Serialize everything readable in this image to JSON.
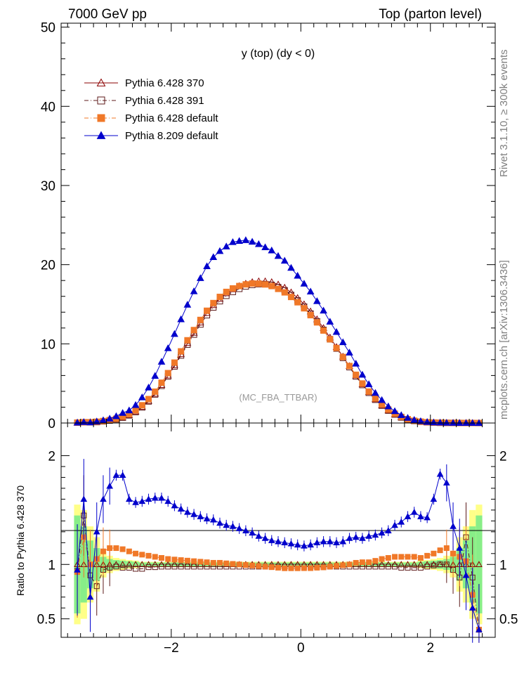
{
  "header": {
    "left": "7000 GeV pp",
    "right": "Top (parton level)"
  },
  "side_text": {
    "rivet": "Rivet 3.1.10, ≥ 300k events",
    "mcplots": "mcplots.cern.ch [arXiv:1306.3436]"
  },
  "chart_data": {
    "type": "line",
    "title": "y (top) (dy < 0)",
    "analysis_id": "(MC_FBA_TTBAR)",
    "main_ylim": [
      0,
      50.5
    ],
    "main_yticks": [
      "0",
      "10",
      "20",
      "30",
      "40",
      "50"
    ],
    "xlim": [
      -3.7,
      3.0
    ],
    "xticks": [
      "−2",
      "0",
      "2"
    ],
    "ratio_ylabel": "Ratio to Pythia 6.428 370",
    "ratio_ylim": [
      0.33,
      2.3
    ],
    "ratio_yticks": [
      "0.5",
      "1",
      "2"
    ],
    "legend": [
      {
        "name": "Pythia 6.428 370",
        "color": "#8b0000",
        "marker": "open-triangle",
        "dash": "solid"
      },
      {
        "name": "Pythia 6.428 391",
        "color": "#5c1a1a",
        "marker": "open-square",
        "dash": "dashdot"
      },
      {
        "name": "Pythia 6.428 default",
        "color": "#f07828",
        "marker": "filled-square",
        "dash": "dashdot"
      },
      {
        "name": "Pythia 8.209 default",
        "color": "#0000cc",
        "marker": "filled-triangle",
        "dash": "solid"
      }
    ],
    "x": [
      -3.45,
      -3.35,
      -3.25,
      -3.15,
      -3.05,
      -2.95,
      -2.85,
      -2.75,
      -2.65,
      -2.55,
      -2.45,
      -2.35,
      -2.25,
      -2.15,
      -2.05,
      -1.95,
      -1.85,
      -1.75,
      -1.65,
      -1.55,
      -1.45,
      -1.35,
      -1.25,
      -1.15,
      -1.05,
      -0.95,
      -0.85,
      -0.75,
      -0.65,
      -0.55,
      -0.45,
      -0.35,
      -0.25,
      -0.15,
      -0.05,
      0.05,
      0.15,
      0.25,
      0.35,
      0.45,
      0.55,
      0.65,
      0.75,
      0.85,
      0.95,
      1.05,
      1.15,
      1.25,
      1.35,
      1.45,
      1.55,
      1.65,
      1.75,
      1.85,
      1.95,
      2.05,
      2.15,
      2.25,
      2.35,
      2.45,
      2.55,
      2.65,
      2.75
    ],
    "series": [
      {
        "name": "Pythia 6.428 370",
        "values": [
          0.05,
          0.07,
          0.1,
          0.15,
          0.22,
          0.32,
          0.47,
          0.7,
          1.0,
          1.45,
          2.05,
          2.8,
          3.7,
          4.8,
          6.0,
          7.3,
          8.7,
          10.1,
          11.4,
          12.7,
          13.9,
          14.9,
          15.7,
          16.4,
          16.9,
          17.3,
          17.6,
          17.8,
          17.9,
          17.9,
          17.8,
          17.5,
          17.1,
          16.5,
          15.8,
          15.0,
          14.1,
          13.1,
          12.0,
          10.8,
          9.6,
          8.4,
          7.2,
          6.0,
          4.9,
          3.9,
          3.0,
          2.25,
          1.6,
          1.1,
          0.72,
          0.45,
          0.27,
          0.16,
          0.09,
          0.05,
          0.03,
          0.02,
          0.012,
          0.007,
          0.004,
          0.002,
          0.001
        ]
      },
      {
        "name": "Pythia 6.428 391",
        "values": [
          0.047,
          0.1,
          0.09,
          0.12,
          0.21,
          0.31,
          0.46,
          0.68,
          0.97,
          1.39,
          1.97,
          2.73,
          3.61,
          4.7,
          5.88,
          7.15,
          8.53,
          9.9,
          11.17,
          12.45,
          13.62,
          14.6,
          15.39,
          16.07,
          16.56,
          16.95,
          17.25,
          17.44,
          17.54,
          17.54,
          17.44,
          17.15,
          16.76,
          16.17,
          15.48,
          14.7,
          13.82,
          12.84,
          11.76,
          10.58,
          9.41,
          8.23,
          7.06,
          5.88,
          4.8,
          3.82,
          2.94,
          2.2,
          1.57,
          1.08,
          0.7,
          0.44,
          0.26,
          0.16,
          0.09,
          0.05,
          0.03,
          0.02,
          0.012,
          0.007,
          0.004,
          0.0025,
          0.001
        ]
      },
      {
        "name": "Pythia 6.428 default",
        "values": [
          0.05,
          0.09,
          0.1,
          0.16,
          0.25,
          0.37,
          0.54,
          0.8,
          1.12,
          1.6,
          2.24,
          3.02,
          3.96,
          5.09,
          6.3,
          7.63,
          9.05,
          10.45,
          11.74,
          13.02,
          14.18,
          15.15,
          15.93,
          16.56,
          17.0,
          17.3,
          17.51,
          17.62,
          17.6,
          17.5,
          17.3,
          16.94,
          16.5,
          15.92,
          15.25,
          14.49,
          13.62,
          12.71,
          11.68,
          10.58,
          9.48,
          8.34,
          7.2,
          6.09,
          4.99,
          3.97,
          3.1,
          2.36,
          1.7,
          1.18,
          0.77,
          0.48,
          0.29,
          0.17,
          0.097,
          0.055,
          0.034,
          0.02,
          0.013,
          0.0075,
          0.0045,
          0.0014,
          0.0005
        ]
      },
      {
        "name": "Pythia 8.209 default",
        "values": [
          0.05,
          0.12,
          0.07,
          0.2,
          0.35,
          0.55,
          0.86,
          1.27,
          1.6,
          2.27,
          3.24,
          4.48,
          5.96,
          7.74,
          9.45,
          11.25,
          13.1,
          14.94,
          16.64,
          18.3,
          19.8,
          20.95,
          21.72,
          22.3,
          22.85,
          23.0,
          23.1,
          22.9,
          22.6,
          22.2,
          21.8,
          21.1,
          20.5,
          19.6,
          18.6,
          17.6,
          16.6,
          15.4,
          14.2,
          12.8,
          11.5,
          10.2,
          8.9,
          7.5,
          6.1,
          4.9,
          3.8,
          2.9,
          2.1,
          1.5,
          1.0,
          0.65,
          0.4,
          0.23,
          0.13,
          0.08,
          0.055,
          0.035,
          0.02,
          0.012,
          0.006,
          0.0045,
          0.0007
        ]
      }
    ],
    "ratios": [
      {
        "name": "Pythia 6.428 391",
        "values": [
          0.94,
          1.45,
          0.9,
          0.8,
          0.95,
          0.97,
          0.98,
          0.97,
          0.97,
          0.96,
          0.96,
          0.975,
          0.975,
          0.98,
          0.98,
          0.98,
          0.98,
          0.98,
          0.98,
          0.98,
          0.98,
          0.98,
          0.98,
          0.98,
          0.98,
          0.98,
          0.98,
          0.98,
          0.98,
          0.98,
          0.98,
          0.98,
          0.98,
          0.98,
          0.98,
          0.98,
          0.98,
          0.98,
          0.98,
          0.98,
          0.98,
          0.98,
          0.98,
          0.98,
          0.98,
          0.98,
          0.98,
          0.98,
          0.98,
          0.98,
          0.97,
          0.97,
          0.97,
          0.97,
          0.98,
          0.99,
          1.0,
          1.0,
          0.95,
          0.88,
          1.25,
          0.88,
          0.4
        ]
      },
      {
        "name": "Pythia 6.428 default",
        "values": [
          0.93,
          1.25,
          1.0,
          1.05,
          1.12,
          1.15,
          1.15,
          1.14,
          1.12,
          1.1,
          1.09,
          1.08,
          1.07,
          1.06,
          1.05,
          1.045,
          1.04,
          1.035,
          1.03,
          1.025,
          1.02,
          1.015,
          1.015,
          1.01,
          1.005,
          1.0,
          0.995,
          0.99,
          0.985,
          0.98,
          0.975,
          0.97,
          0.965,
          0.965,
          0.965,
          0.966,
          0.966,
          0.97,
          0.973,
          0.98,
          0.987,
          0.993,
          1.0,
          1.015,
          1.02,
          1.02,
          1.033,
          1.05,
          1.06,
          1.07,
          1.07,
          1.07,
          1.07,
          1.06,
          1.08,
          1.1,
          1.13,
          1.15,
          1.1,
          1.07,
          1.03,
          0.72,
          0.4
        ]
      },
      {
        "name": "Pythia 8.209 default",
        "values": [
          0.95,
          1.6,
          0.7,
          1.3,
          1.6,
          1.72,
          1.82,
          1.82,
          1.6,
          1.57,
          1.58,
          1.6,
          1.61,
          1.61,
          1.58,
          1.54,
          1.51,
          1.48,
          1.46,
          1.44,
          1.42,
          1.41,
          1.38,
          1.36,
          1.35,
          1.33,
          1.31,
          1.29,
          1.26,
          1.24,
          1.22,
          1.21,
          1.2,
          1.19,
          1.18,
          1.17,
          1.18,
          1.2,
          1.21,
          1.21,
          1.2,
          1.21,
          1.24,
          1.25,
          1.24,
          1.26,
          1.27,
          1.29,
          1.31,
          1.36,
          1.39,
          1.44,
          1.48,
          1.44,
          1.43,
          1.6,
          1.83,
          1.75,
          1.35,
          1.15,
          0.9,
          0.6,
          0.4
        ]
      }
    ]
  }
}
